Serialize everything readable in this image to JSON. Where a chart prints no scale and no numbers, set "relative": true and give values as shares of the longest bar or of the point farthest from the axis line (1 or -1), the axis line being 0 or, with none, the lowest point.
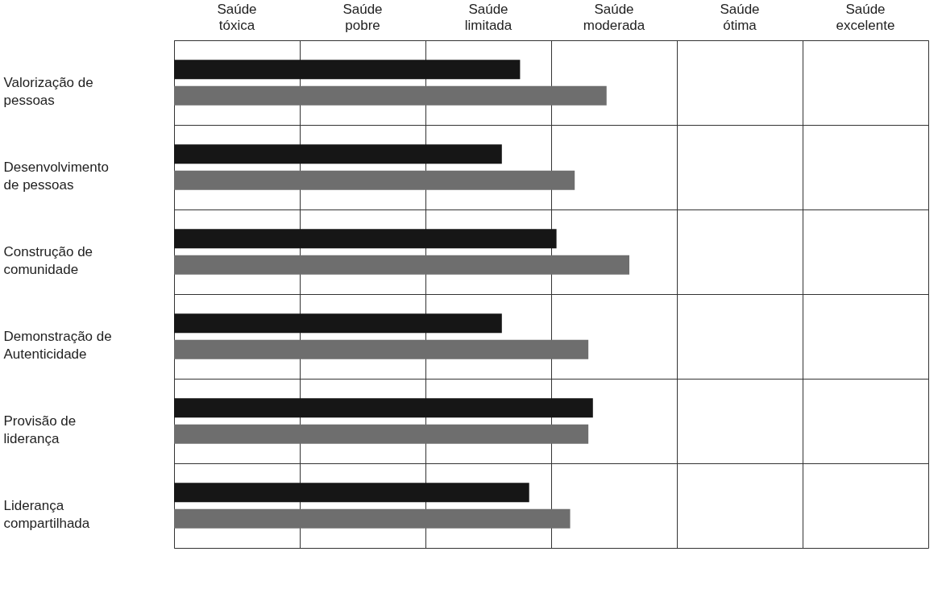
{
  "chart_data": {
    "type": "bar",
    "orientation": "horizontal",
    "relative": true,
    "categories": [
      "Valorização de pessoas",
      "Desenvolvimento de pessoas",
      "Construção de comunidade",
      "Demonstração de Autenticidade",
      "Provisão de liderança",
      "Liderança compartilhada"
    ],
    "series": [
      {
        "color": "#161616",
        "values": [
          0.76,
          0.72,
          0.84,
          0.72,
          0.92,
          0.78
        ]
      },
      {
        "color": "#6e6e6e",
        "values": [
          0.95,
          0.88,
          1,
          0.91,
          0.91,
          0.87
        ]
      }
    ],
    "annotations": [
      "Saúde tóxica",
      "Saúde pobre",
      "Saúde limitada",
      "Saúde moderada",
      "Saúde ótima",
      "Saúde excelente"
    ],
    "grid": true
  }
}
